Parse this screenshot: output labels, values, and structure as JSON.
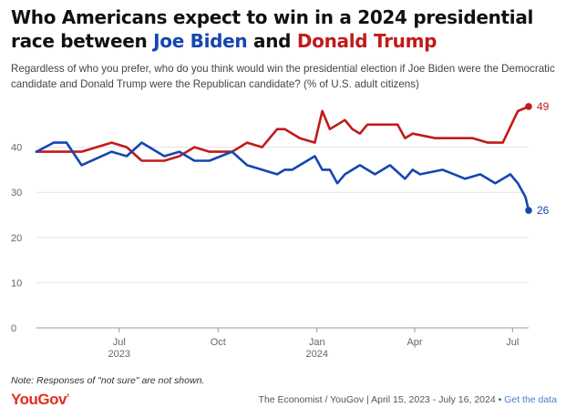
{
  "header": {
    "title_line1": "Who Americans expect to win in a 2024 presidential",
    "title_prefix": "race between",
    "title_biden": "Joe Biden",
    "title_and": "and",
    "title_trump": "Donald Trump",
    "subtitle": "Regardless of who you prefer, who do you think would win the presidential election if Joe Biden were the Democratic candidate and Donald Trump were the Republican candidate? (% of U.S. adult citizens)"
  },
  "footer": {
    "note": "Note: Responses of \"not sure\" are not shown.",
    "logo_text": "YouGov",
    "logo_mark": "x",
    "source": "The Economist / YouGov | April 15, 2023 - July 16, 2024 •",
    "link": "Get the data"
  },
  "colors": {
    "biden": "#1546b0",
    "trump": "#c21a1a",
    "grid": "#e3e3e3",
    "axis": "#999999"
  },
  "chart_data": {
    "type": "line",
    "title": "Who Americans expect to win in a 2024 presidential race between Joe Biden and Donald Trump",
    "xlabel": "",
    "ylabel": "% of U.S. adult citizens",
    "ylim": [
      0,
      50
    ],
    "yticks": [
      0,
      10,
      20,
      30,
      40
    ],
    "xlim": [
      "2023-04-15",
      "2024-07-16"
    ],
    "xticks": [
      {
        "date": "2023-07-01",
        "label": "Jul",
        "sublabel": "2023"
      },
      {
        "date": "2023-10-01",
        "label": "Oct",
        "sublabel": ""
      },
      {
        "date": "2024-01-01",
        "label": "Jan",
        "sublabel": "2024"
      },
      {
        "date": "2024-04-01",
        "label": "Apr",
        "sublabel": ""
      },
      {
        "date": "2024-07-01",
        "label": "Jul",
        "sublabel": ""
      }
    ],
    "series": [
      {
        "name": "Donald Trump",
        "end_label": "49",
        "points": [
          [
            "2023-04-15",
            39
          ],
          [
            "2023-05-01",
            39
          ],
          [
            "2023-05-13",
            39
          ],
          [
            "2023-05-27",
            39
          ],
          [
            "2023-06-24",
            41
          ],
          [
            "2023-07-08",
            40
          ],
          [
            "2023-07-22",
            37
          ],
          [
            "2023-08-12",
            37
          ],
          [
            "2023-08-26",
            38
          ],
          [
            "2023-09-09",
            40
          ],
          [
            "2023-09-23",
            39
          ],
          [
            "2023-10-14",
            39
          ],
          [
            "2023-10-28",
            41
          ],
          [
            "2023-11-11",
            40
          ],
          [
            "2023-11-25",
            44
          ],
          [
            "2023-12-02",
            44
          ],
          [
            "2023-12-16",
            42
          ],
          [
            "2023-12-30",
            41
          ],
          [
            "2024-01-06",
            48
          ],
          [
            "2024-01-13",
            44
          ],
          [
            "2024-01-27",
            46
          ],
          [
            "2024-02-03",
            44
          ],
          [
            "2024-02-10",
            43
          ],
          [
            "2024-02-17",
            45
          ],
          [
            "2024-03-16",
            45
          ],
          [
            "2024-03-23",
            42
          ],
          [
            "2024-03-30",
            43
          ],
          [
            "2024-04-20",
            42
          ],
          [
            "2024-05-25",
            42
          ],
          [
            "2024-06-08",
            41
          ],
          [
            "2024-06-22",
            41
          ],
          [
            "2024-07-06",
            48
          ],
          [
            "2024-07-16",
            49
          ]
        ]
      },
      {
        "name": "Joe Biden",
        "end_label": "26",
        "points": [
          [
            "2023-04-15",
            39
          ],
          [
            "2023-05-01",
            41
          ],
          [
            "2023-05-13",
            41
          ],
          [
            "2023-05-27",
            36
          ],
          [
            "2023-06-24",
            39
          ],
          [
            "2023-07-08",
            38
          ],
          [
            "2023-07-22",
            41
          ],
          [
            "2023-08-12",
            38
          ],
          [
            "2023-08-26",
            39
          ],
          [
            "2023-09-09",
            37
          ],
          [
            "2023-09-23",
            37
          ],
          [
            "2023-10-14",
            39
          ],
          [
            "2023-10-28",
            36
          ],
          [
            "2023-11-11",
            35
          ],
          [
            "2023-11-25",
            34
          ],
          [
            "2023-12-02",
            35
          ],
          [
            "2023-12-09",
            35
          ],
          [
            "2023-12-16",
            36
          ],
          [
            "2023-12-30",
            38
          ],
          [
            "2024-01-06",
            35
          ],
          [
            "2024-01-13",
            35
          ],
          [
            "2024-01-20",
            32
          ],
          [
            "2024-01-27",
            34
          ],
          [
            "2024-02-10",
            36
          ],
          [
            "2024-02-24",
            34
          ],
          [
            "2024-03-09",
            36
          ],
          [
            "2024-03-23",
            33
          ],
          [
            "2024-03-30",
            35
          ],
          [
            "2024-04-06",
            34
          ],
          [
            "2024-04-27",
            35
          ],
          [
            "2024-05-18",
            33
          ],
          [
            "2024-06-01",
            34
          ],
          [
            "2024-06-15",
            32
          ],
          [
            "2024-06-29",
            34
          ],
          [
            "2024-07-06",
            32
          ],
          [
            "2024-07-13",
            29
          ],
          [
            "2024-07-16",
            26
          ]
        ]
      }
    ]
  }
}
